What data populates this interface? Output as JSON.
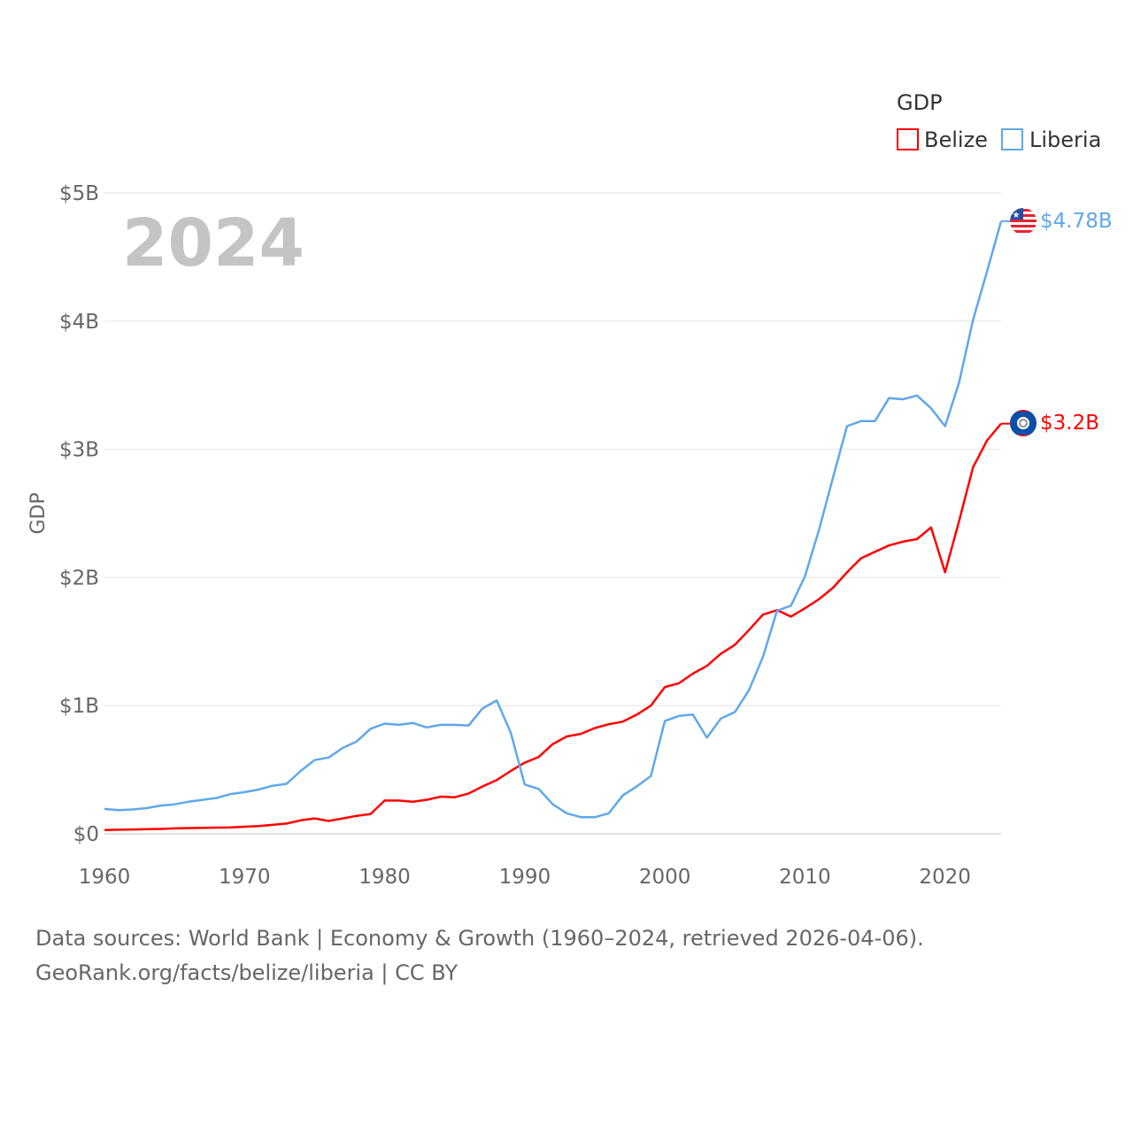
{
  "chart_data": {
    "type": "line",
    "title": "GDP",
    "watermark_year": "2024",
    "ylabel": "GDP",
    "xlabel": "",
    "xlim": [
      1960,
      2024
    ],
    "ylim": [
      0,
      5
    ],
    "y_unit": "USD billions",
    "xticks": [
      1960,
      1970,
      1980,
      1990,
      2000,
      2010,
      2020
    ],
    "xtick_labels": [
      "1960",
      "1970",
      "1980",
      "1990",
      "2000",
      "2010",
      "2020"
    ],
    "yticks": [
      0,
      1,
      2,
      3,
      4,
      5
    ],
    "ytick_labels": [
      "$0",
      "$1B",
      "$2B",
      "$3B",
      "$4B",
      "$5B"
    ],
    "grid": true,
    "legend_placement": "top-right",
    "legend_title": "GDP",
    "x": [
      1960,
      1961,
      1962,
      1963,
      1964,
      1965,
      1966,
      1967,
      1968,
      1969,
      1970,
      1971,
      1972,
      1973,
      1974,
      1975,
      1976,
      1977,
      1978,
      1979,
      1980,
      1981,
      1982,
      1983,
      1984,
      1985,
      1986,
      1987,
      1988,
      1989,
      1990,
      1991,
      1992,
      1993,
      1994,
      1995,
      1996,
      1997,
      1998,
      1999,
      2000,
      2001,
      2002,
      2003,
      2004,
      2005,
      2006,
      2007,
      2008,
      2009,
      2010,
      2011,
      2012,
      2013,
      2014,
      2015,
      2016,
      2017,
      2018,
      2019,
      2020,
      2021,
      2022,
      2023,
      2024
    ],
    "series": [
      {
        "name": "Belize",
        "color": "#ff0000",
        "end_label": "$3.2B",
        "flag": "belize-flag",
        "values": [
          0.03,
          0.032,
          0.034,
          0.036,
          0.038,
          0.042,
          0.045,
          0.047,
          0.048,
          0.05,
          0.055,
          0.06,
          0.07,
          0.08,
          0.105,
          0.12,
          0.1,
          0.12,
          0.14,
          0.155,
          0.26,
          0.26,
          0.25,
          0.265,
          0.29,
          0.285,
          0.315,
          0.37,
          0.42,
          0.49,
          0.555,
          0.6,
          0.7,
          0.76,
          0.78,
          0.825,
          0.855,
          0.875,
          0.93,
          1.0,
          1.145,
          1.175,
          1.25,
          1.31,
          1.405,
          1.475,
          1.59,
          1.71,
          1.745,
          1.695,
          1.76,
          1.83,
          1.92,
          2.04,
          2.15,
          2.2,
          2.25,
          2.28,
          2.3,
          2.39,
          2.04,
          2.44,
          2.86,
          3.07,
          3.2
        ]
      },
      {
        "name": "Liberia",
        "color": "#5fa8ea",
        "end_label": "$4.78B",
        "flag": "liberia-flag",
        "values": [
          0.194,
          0.185,
          0.19,
          0.2,
          0.22,
          0.23,
          0.25,
          0.265,
          0.28,
          0.31,
          0.325,
          0.345,
          0.375,
          0.39,
          0.49,
          0.575,
          0.595,
          0.67,
          0.72,
          0.82,
          0.86,
          0.85,
          0.865,
          0.83,
          0.85,
          0.85,
          0.845,
          0.98,
          1.04,
          0.79,
          0.385,
          0.35,
          0.23,
          0.16,
          0.13,
          0.13,
          0.16,
          0.3,
          0.37,
          0.45,
          0.88,
          0.92,
          0.93,
          0.75,
          0.9,
          0.95,
          1.12,
          1.38,
          1.74,
          1.78,
          2.01,
          2.37,
          2.78,
          3.18,
          3.22,
          3.22,
          3.4,
          3.39,
          3.42,
          3.32,
          3.18,
          3.52,
          4.01,
          4.39,
          4.78
        ]
      }
    ]
  },
  "footer": {
    "line1": "Data sources: World Bank | Economy & Growth (1960–2024, retrieved 2026-04-06).",
    "line2": "GeoRank.org/facts/belize/liberia | CC BY"
  }
}
